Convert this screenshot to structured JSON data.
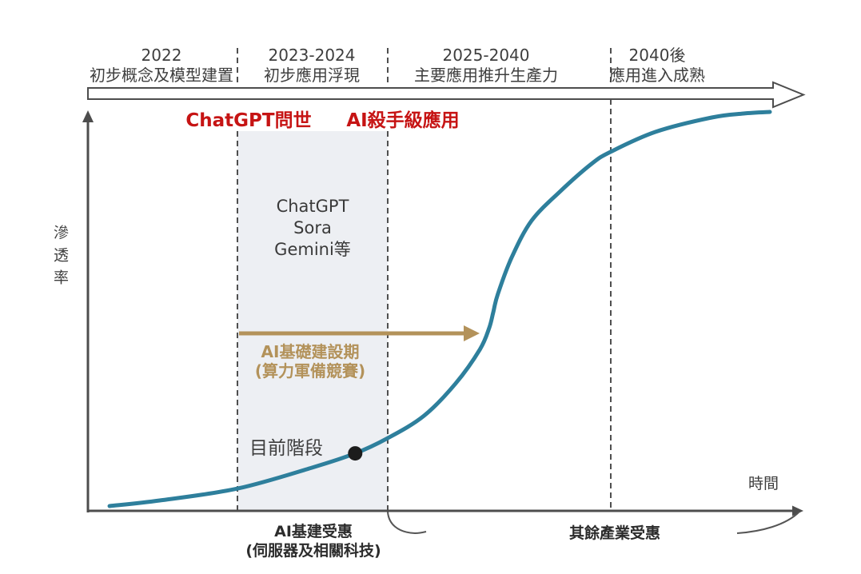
{
  "phases": [
    {
      "period": "2022",
      "label": "初步概念及模型建置"
    },
    {
      "period": "2023-2024",
      "label": "初步應用浮現"
    },
    {
      "period": "2025-2040",
      "label": "主要應用推升生產力"
    },
    {
      "period": "2040後",
      "label": "應用進入成熟"
    }
  ],
  "annotations": {
    "chatgpt_launch": "ChatGPT問世",
    "killer_apps": "AI殺手級應用",
    "examples_line1": "ChatGPT",
    "examples_line2": "Sora",
    "examples_line3": "Gemini等",
    "infra_period_line1": "AI基礎建設期",
    "infra_period_line2": "(算力軍備競賽)",
    "current_stage": "目前階段",
    "bottom_left_line1": "AI基建受惠",
    "bottom_left_line2": "(伺服器及相關科技)",
    "bottom_right": "其餘產業受惠"
  },
  "axes": {
    "y_label": "滲透率",
    "x_label": "時間"
  },
  "colors": {
    "curve": "#2e7f9c",
    "accent_red": "#c61414",
    "accent_tan": "#b3925a",
    "axis_gray": "#4d4d4d",
    "band_fill": "#edeff3",
    "text_dark": "#3a3a3a",
    "marker_black": "#1c1c1c"
  },
  "chart_data": {
    "type": "line",
    "xlabel": "時間",
    "ylabel": "滲透率",
    "axes_numeric": false,
    "grid": false,
    "legend": "none",
    "phase_boundaries_t": [
      19.4,
      42.1,
      75.9
    ],
    "highlight_band": {
      "from_t": 19.4,
      "to_t": 42.1,
      "labels": [
        "ChatGPT",
        "Sora",
        "Gemini等"
      ]
    },
    "series": [
      {
        "name": "ai-penetration-s-curve",
        "color": "#2e7f9c",
        "points": [
          [
            0,
            1.2
          ],
          [
            7.6,
            2.6
          ],
          [
            19.4,
            5.6
          ],
          [
            30.6,
            10.8
          ],
          [
            37.2,
            14.4
          ],
          [
            42.1,
            18.2
          ],
          [
            47.6,
            23.8
          ],
          [
            52.4,
            31.9
          ],
          [
            56.1,
            40.5
          ],
          [
            57.5,
            45.9
          ],
          [
            58.1,
            49.7
          ],
          [
            58.8,
            54.3
          ],
          [
            60.9,
            63.5
          ],
          [
            63.9,
            72.7
          ],
          [
            68.2,
            80.0
          ],
          [
            73.0,
            87.0
          ],
          [
            75.9,
            90.0
          ],
          [
            82.7,
            95.0
          ],
          [
            91.2,
            98.6
          ],
          [
            96.0,
            99.6
          ],
          [
            100,
            100
          ]
        ]
      }
    ],
    "markers": [
      {
        "name": "current-stage",
        "label": "目前階段",
        "point": [
          37.2,
          14.4
        ],
        "color": "#1c1c1c"
      }
    ]
  }
}
